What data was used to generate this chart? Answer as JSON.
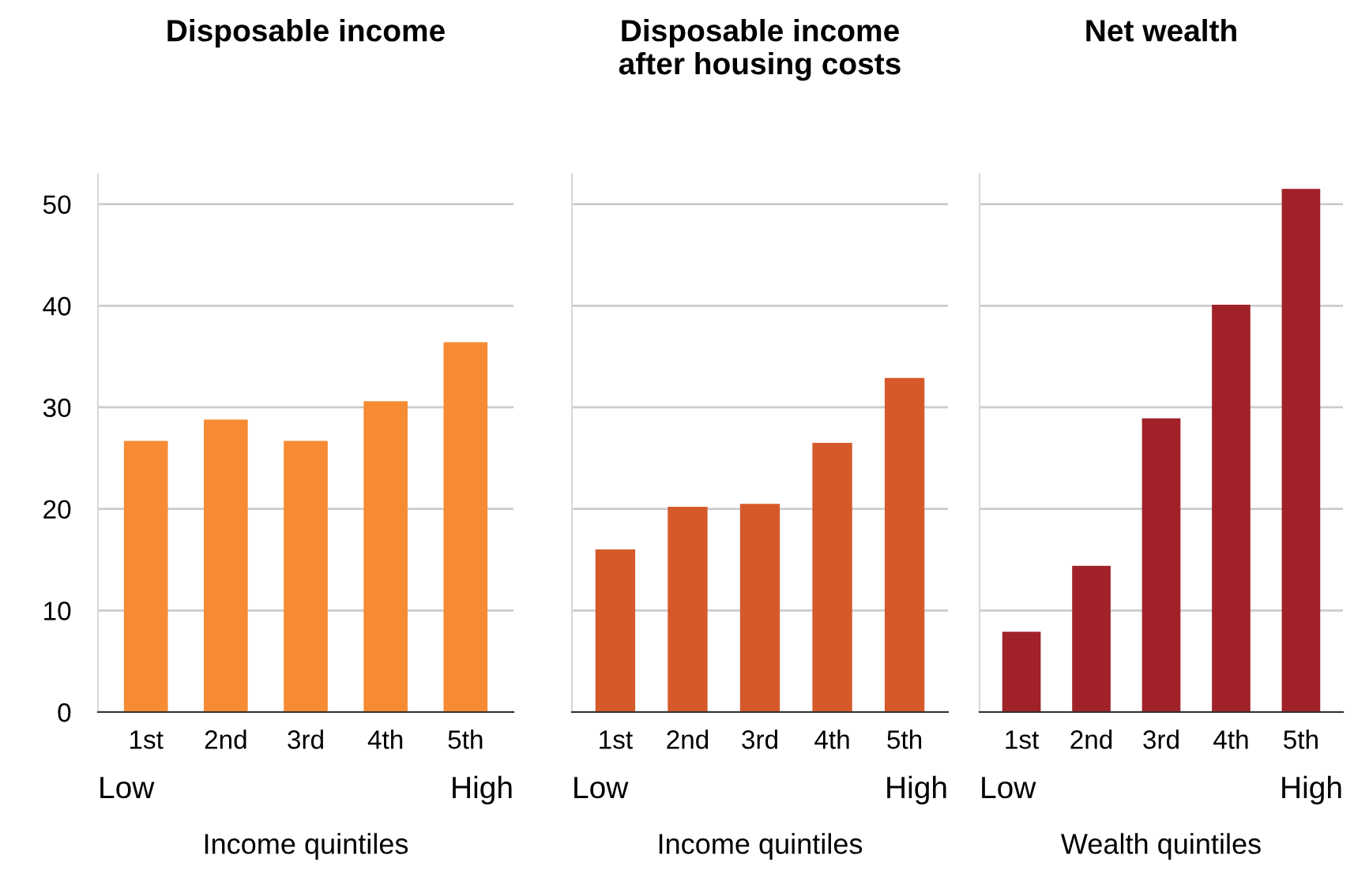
{
  "chart_data": [
    {
      "type": "bar",
      "title": "Disposable income",
      "categories": [
        "1st",
        "2nd",
        "3rd",
        "4th",
        "5th"
      ],
      "values": [
        26.7,
        28.8,
        26.7,
        30.6,
        36.4
      ],
      "color": "#f68b33",
      "xlabel": "Income quintiles",
      "annotations": [
        "Low",
        "High"
      ],
      "ylim": [
        0,
        53
      ],
      "yticks": [
        0,
        10,
        20,
        30,
        40,
        50
      ],
      "grid": "y"
    },
    {
      "type": "bar",
      "title": "Disposable income\nafter housing costs",
      "categories": [
        "1st",
        "2nd",
        "3rd",
        "4th",
        "5th"
      ],
      "values": [
        16.0,
        20.2,
        20.5,
        26.5,
        32.9
      ],
      "color": "#d5592b",
      "xlabel": "Income quintiles",
      "annotations": [
        "Low",
        "High"
      ],
      "ylim": [
        0,
        53
      ],
      "yticks": [
        0,
        10,
        20,
        30,
        40,
        50
      ],
      "grid": "y",
      "tick_labels": "x"
    },
    {
      "type": "bar",
      "title": "Net wealth",
      "categories": [
        "1st",
        "2nd",
        "3rd",
        "4th",
        "5th"
      ],
      "values": [
        7.9,
        14.4,
        28.9,
        40.1,
        51.5
      ],
      "color": "#a02128",
      "xlabel": "Wealth quintiles",
      "annotations": [
        "Low",
        "High"
      ],
      "ylim": [
        0,
        53
      ],
      "yticks": [
        0,
        10,
        20,
        30,
        40,
        50
      ],
      "grid": "y",
      "tick_labels": "x"
    }
  ]
}
